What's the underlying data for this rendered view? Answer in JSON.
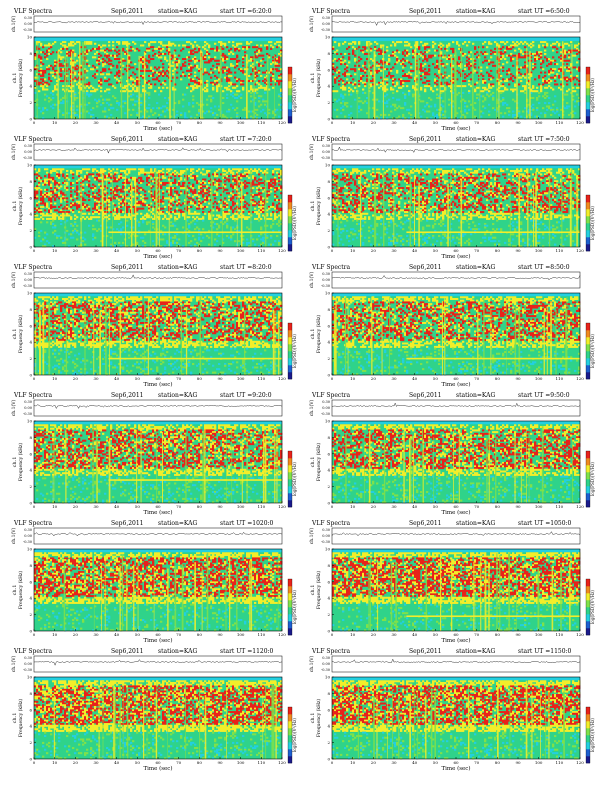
{
  "header": {
    "title": "VLF Spectra",
    "date": "Sep6,2011",
    "station": "station=KAG",
    "start_prefix": "start  UT ="
  },
  "axes": {
    "ch_label": "ch.1(V)",
    "freq_label": "ch.1",
    "freq_sub": "Frequency (kHz)",
    "time_label": "Time (sec)",
    "cbar_label": "log(PSD)(V²/Hz)",
    "x_ticks": [
      "0",
      "10",
      "20",
      "30",
      "40",
      "50",
      "60",
      "70",
      "80",
      "90",
      "100",
      "110",
      "120"
    ],
    "y_ticks": [
      "0",
      "2",
      "4",
      "6",
      "8",
      "10"
    ],
    "v_ticks": [
      "0.30",
      "0.00",
      "-0.30"
    ]
  },
  "colors": {
    "bg": "#23d0e0",
    "low": "#2fd38a",
    "mid": "#7fe14a",
    "yellow": "#f2ee2a",
    "red": "#e8221a"
  },
  "chart_data": [
    {
      "type": "heatmap",
      "start_ut": "6:20:0",
      "xlim": [
        0,
        120
      ],
      "ylim": [
        0,
        10
      ],
      "band_high_khz": 9.5,
      "activity": 0.35,
      "tone_khz": null
    },
    {
      "type": "heatmap",
      "start_ut": "6:50:0",
      "xlim": [
        0,
        120
      ],
      "ylim": [
        0,
        10
      ],
      "band_high_khz": 9.5,
      "activity": 0.35,
      "tone_khz": null
    },
    {
      "type": "heatmap",
      "start_ut": "7:20:0",
      "xlim": [
        0,
        120
      ],
      "ylim": [
        0,
        10
      ],
      "band_high_khz": 9.6,
      "activity": 0.5,
      "tone_khz": 1.8
    },
    {
      "type": "heatmap",
      "start_ut": "7:50:0",
      "xlim": [
        0,
        120
      ],
      "ylim": [
        0,
        10
      ],
      "band_high_khz": 9.6,
      "activity": 0.5,
      "tone_khz": 1.8
    },
    {
      "type": "heatmap",
      "start_ut": "8:20:0",
      "xlim": [
        0,
        120
      ],
      "ylim": [
        0,
        10
      ],
      "band_high_khz": 9.6,
      "activity": 0.6,
      "tone_khz": 2.0
    },
    {
      "type": "heatmap",
      "start_ut": "8:50:0",
      "xlim": [
        0,
        120
      ],
      "ylim": [
        0,
        10
      ],
      "band_high_khz": 9.6,
      "activity": 0.6,
      "tone_khz": 2.0
    },
    {
      "type": "heatmap",
      "start_ut": "9:20:0",
      "xlim": [
        0,
        120
      ],
      "ylim": [
        0,
        10
      ],
      "band_high_khz": 9.6,
      "activity": 0.6,
      "tone_khz": 2.8
    },
    {
      "type": "heatmap",
      "start_ut": "9:50:0",
      "xlim": [
        0,
        120
      ],
      "ylim": [
        0,
        10
      ],
      "band_high_khz": 9.6,
      "activity": 0.6,
      "tone_khz": null
    },
    {
      "type": "heatmap",
      "start_ut": "1020:0",
      "xlim": [
        0,
        120
      ],
      "ylim": [
        0,
        10
      ],
      "band_high_khz": 9.6,
      "activity": 0.7,
      "tone_khz": null
    },
    {
      "type": "heatmap",
      "start_ut": "1050:0",
      "xlim": [
        0,
        120
      ],
      "ylim": [
        0,
        10
      ],
      "band_high_khz": 9.6,
      "activity": 0.75,
      "tone_khz": 1.8
    },
    {
      "type": "heatmap",
      "start_ut": "1120:0",
      "xlim": [
        0,
        120
      ],
      "ylim": [
        0,
        10
      ],
      "band_high_khz": 9.6,
      "activity": 0.75,
      "tone_khz": null
    },
    {
      "type": "heatmap",
      "start_ut": "1150:0",
      "xlim": [
        0,
        120
      ],
      "ylim": [
        0,
        10
      ],
      "band_high_khz": 9.6,
      "activity": 0.75,
      "tone_khz": null
    }
  ]
}
